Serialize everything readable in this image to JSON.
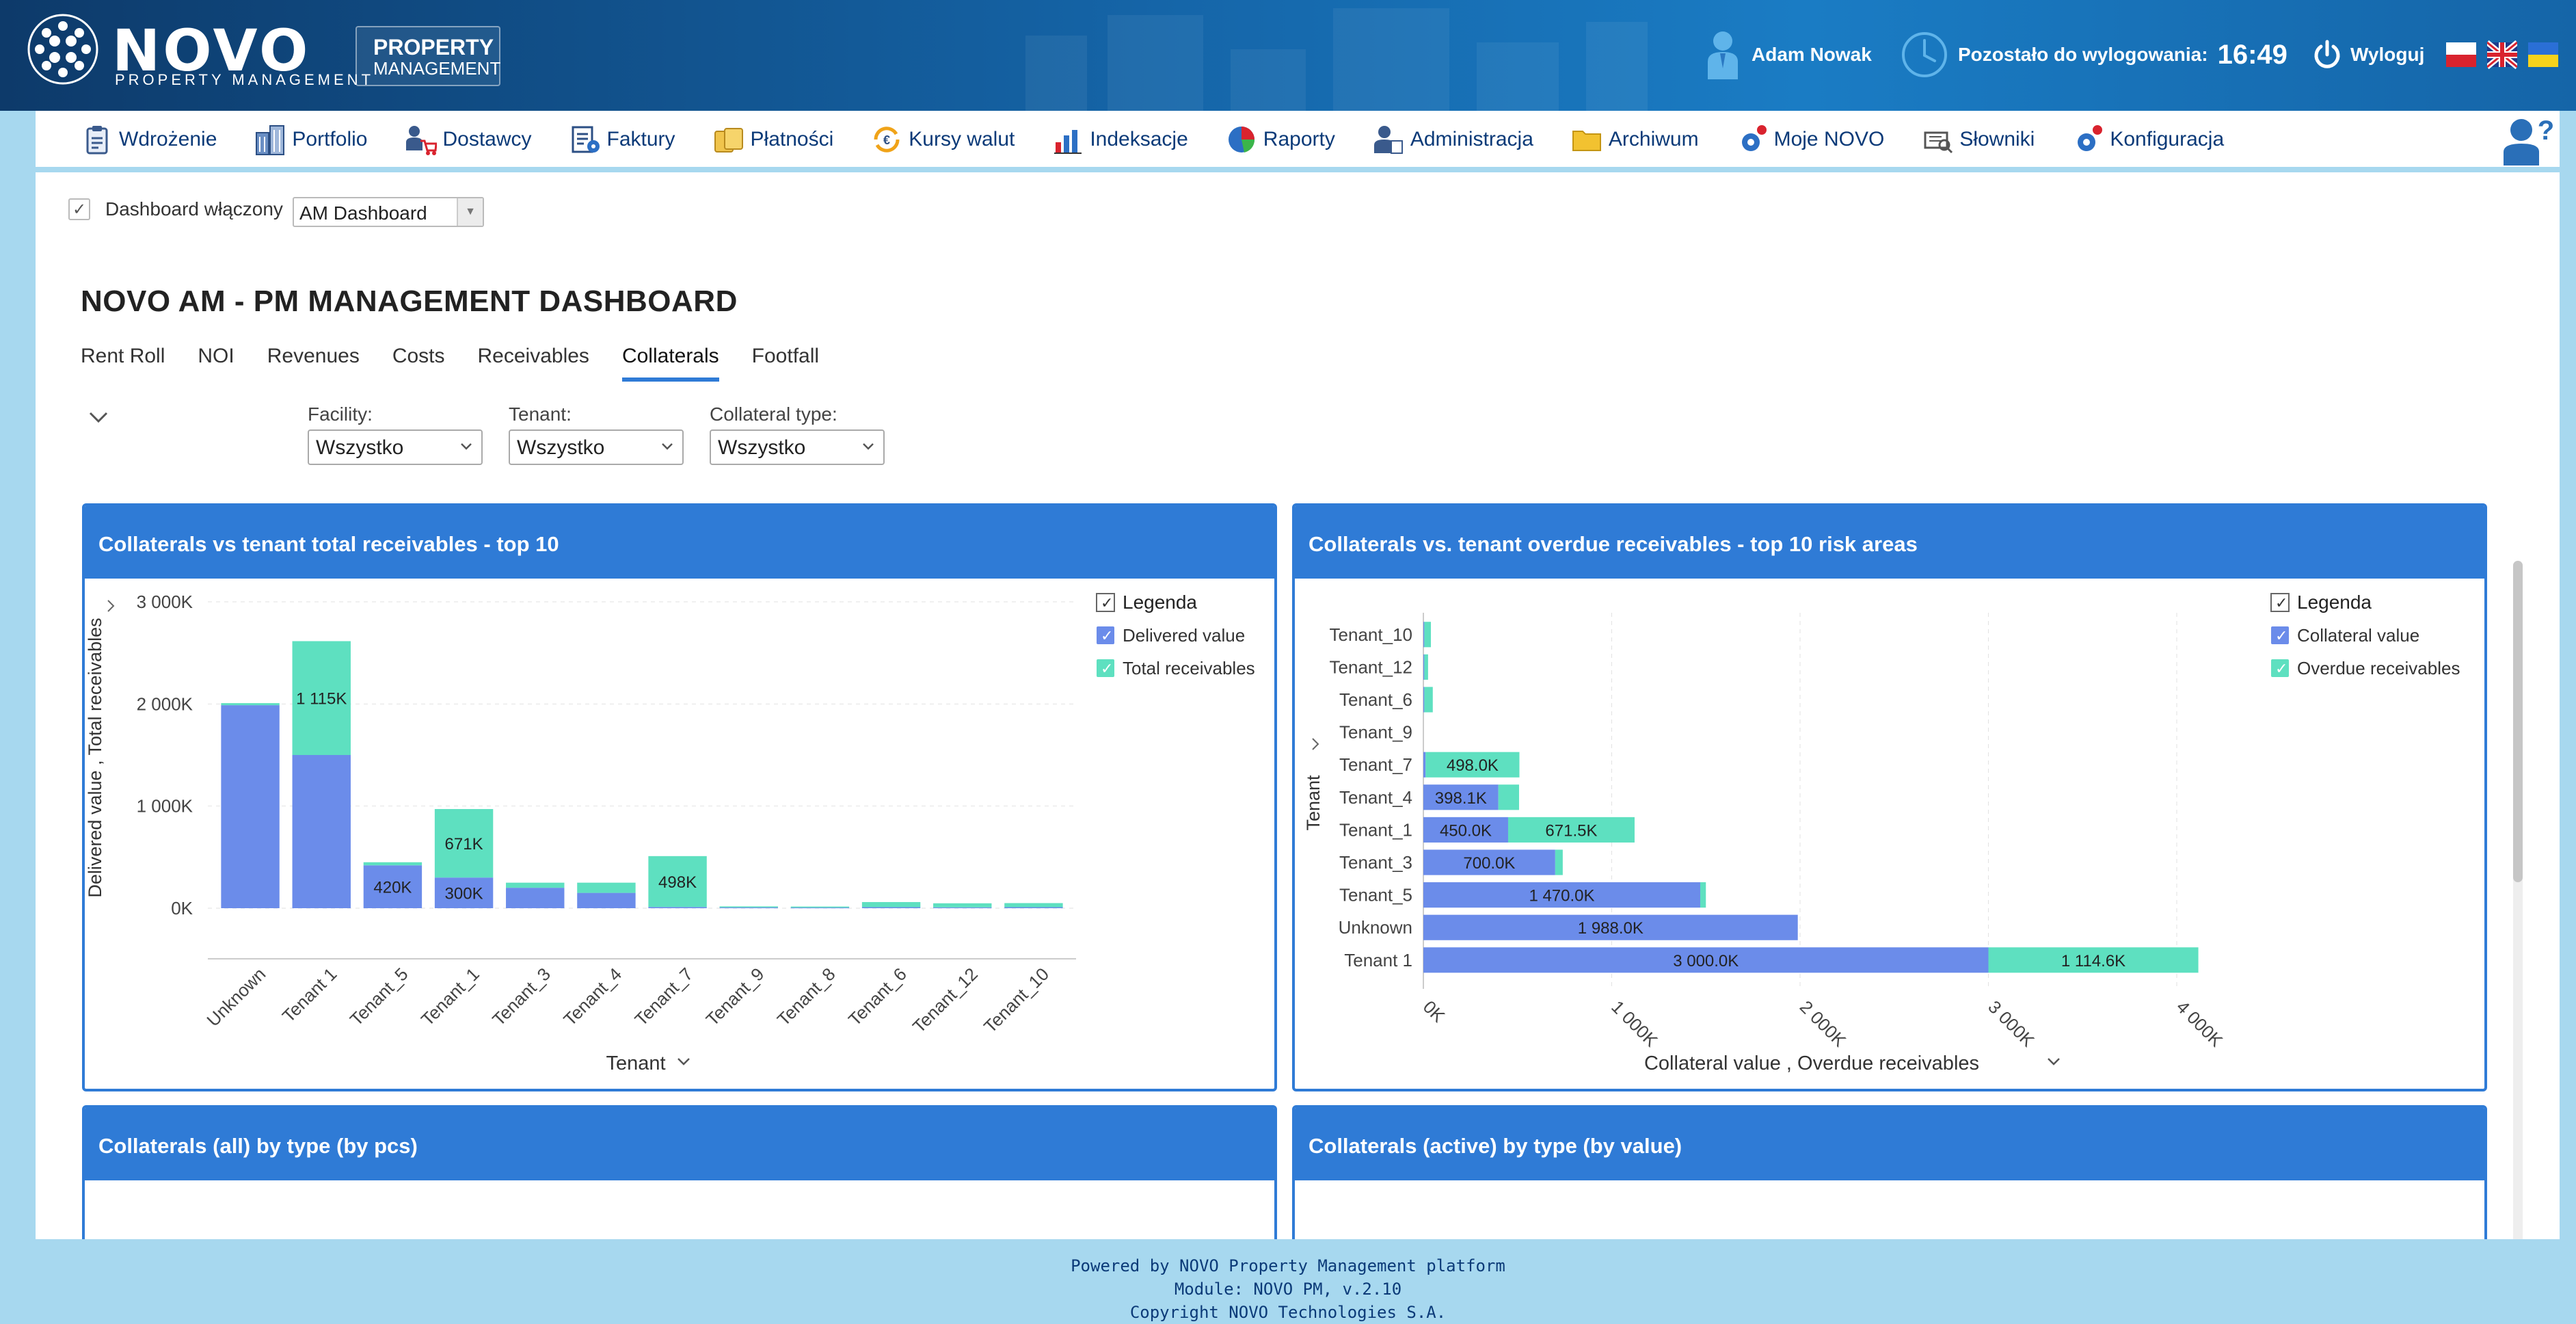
{
  "header": {
    "logo_text": "NOVO",
    "logo_subtitle": "PROPERTY MANAGEMENT",
    "badge_line1": "PROPERTY",
    "badge_line2": "MANAGEMENT",
    "user_name": "Adam Nowak",
    "timer_label": "Pozostało do wylogowania:",
    "timer_value": "16:49",
    "logout_label": "Wyloguj",
    "languages": [
      "pl",
      "en",
      "ua"
    ]
  },
  "nav": {
    "items": [
      {
        "label": "Wdrożenie",
        "icon": "clipboard-icon"
      },
      {
        "label": "Portfolio",
        "icon": "buildings-icon"
      },
      {
        "label": "Dostawcy",
        "icon": "supplier-cart-icon"
      },
      {
        "label": "Faktury",
        "icon": "invoice-gear-icon"
      },
      {
        "label": "Płatności",
        "icon": "coins-icon"
      },
      {
        "label": "Kursy walut",
        "icon": "currency-exchange-icon"
      },
      {
        "label": "Indeksacje",
        "icon": "bar-chart-icon"
      },
      {
        "label": "Raporty",
        "icon": "pie-chart-icon"
      },
      {
        "label": "Administracja",
        "icon": "admin-user-icon"
      },
      {
        "label": "Archiwum",
        "icon": "folder-icon"
      },
      {
        "label": "Moje NOVO",
        "icon": "gear-icon"
      },
      {
        "label": "Słowniki",
        "icon": "dictionary-icon"
      },
      {
        "label": "Konfiguracja",
        "icon": "config-gear-icon"
      }
    ]
  },
  "dashboard_toggle": {
    "label": "Dashboard włączony",
    "checked": true,
    "selected": "AM Dashboard"
  },
  "page_title": "NOVO AM - PM MANAGEMENT DASHBOARD",
  "tabs": [
    {
      "label": "Rent Roll",
      "active": false
    },
    {
      "label": "NOI",
      "active": false
    },
    {
      "label": "Revenues",
      "active": false
    },
    {
      "label": "Costs",
      "active": false
    },
    {
      "label": "Receivables",
      "active": false
    },
    {
      "label": "Collaterals",
      "active": true
    },
    {
      "label": "Footfall",
      "active": false
    }
  ],
  "filters": [
    {
      "label": "Facility:",
      "value": "Wszystko"
    },
    {
      "label": "Tenant:",
      "value": "Wszystko"
    },
    {
      "label": "Collateral type:",
      "value": "Wszystko"
    }
  ],
  "panels": {
    "p1_title": "Collaterals vs tenant total receivables - top 10",
    "p2_title": "Collaterals vs. tenant overdue receivables - top 10 risk areas",
    "p3_title": "Collaterals (all) by type (by pcs)",
    "p4_title": "Collaterals (active) by type (by value)"
  },
  "colors": {
    "blue": "#6b8cea",
    "teal": "#5ee0c0",
    "header": "#2f7bd6"
  },
  "chart_data": [
    {
      "type": "bar",
      "stacked": true,
      "title": "Collaterals vs tenant total receivables - top 10",
      "xlabel": "Tenant",
      "ylabel": "Delivered value , Total receivables",
      "categories": [
        "Unknown",
        "Tenant 1",
        "Tenant_5",
        "Tenant_1",
        "Tenant_3",
        "Tenant_4",
        "Tenant_7",
        "Tenant_9",
        "Tenant_8",
        "Tenant_6",
        "Tenant_12",
        "Tenant_10"
      ],
      "series": [
        {
          "name": "Delivered value",
          "values": [
            1988,
            1500,
            420,
            300,
            200,
            150,
            12,
            8,
            6,
            10,
            8,
            10
          ],
          "labels": [
            "",
            "",
            "420K",
            "300K",
            "",
            "",
            "",
            "",
            "",
            "",
            "",
            ""
          ]
        },
        {
          "name": "Total receivables",
          "values": [
            20,
            1115,
            30,
            671,
            50,
            100,
            498,
            10,
            10,
            50,
            40,
            40
          ],
          "labels": [
            "",
            "1 115K",
            "",
            "671K",
            "",
            "",
            "498K",
            "",
            "",
            "",
            "",
            ""
          ]
        }
      ],
      "ylim": [
        0,
        3000
      ],
      "yticks": [
        "0K",
        "1 000K",
        "2 000K",
        "3 000K"
      ],
      "legend_title": "Legenda",
      "legend_position": "top-right",
      "grid": true
    },
    {
      "type": "bar",
      "orientation": "horizontal",
      "stacked": true,
      "title": "Collaterals vs. tenant overdue receivables - top 10 risk areas",
      "xlabel": "Collateral value , Overdue receivables",
      "ylabel": "Tenant",
      "categories": [
        "Tenant_10",
        "Tenant_12",
        "Tenant_6",
        "Tenant_9",
        "Tenant_7",
        "Tenant_4",
        "Tenant_1",
        "Tenant_3",
        "Tenant_5",
        "Unknown",
        "Tenant 1"
      ],
      "series": [
        {
          "name": "Collateral value",
          "values": [
            5,
            5,
            5,
            0,
            12,
            398.1,
            450,
            700,
            1470,
            1988,
            3000
          ],
          "labels": [
            "",
            "",
            "",
            "",
            "",
            "398.1K",
            "450.0K",
            "700.0K",
            "1 470.0K",
            "1 988.0K",
            "3 000.0K"
          ]
        },
        {
          "name": "Overdue receivables",
          "values": [
            35,
            20,
            45,
            0,
            498,
            110,
            671.5,
            40,
            30,
            0,
            1114.6
          ],
          "labels": [
            "",
            "",
            "",
            "",
            "498.0K",
            "",
            "671.5K",
            "",
            "",
            "",
            "1 114.6K"
          ]
        }
      ],
      "xlim": [
        0,
        4000
      ],
      "xticks": [
        "0K",
        "1 000K",
        "2 000K",
        "3 000K",
        "4 000K"
      ],
      "legend_title": "Legenda",
      "legend_position": "top-right",
      "grid": true
    }
  ],
  "footer": {
    "line1": "Powered by NOVO Property Management platform",
    "line2": "Module: NOVO PM, v.2.10",
    "line3": "Copyright NOVO Technologies S.A."
  }
}
